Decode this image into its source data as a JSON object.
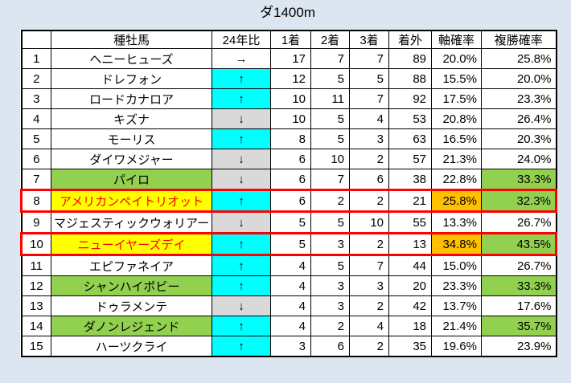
{
  "title": "ダ1400m",
  "colors": {
    "page_bg": "#dce6f1",
    "trend_up_bg": "#00ffff",
    "trend_down_bg": "#d9d9d9",
    "highlight_green": "#92d050",
    "highlight_yellow": "#ffff00",
    "highlight_orange": "#ffc000",
    "attention_red": "#ff0000"
  },
  "table": {
    "headers": [
      "",
      "種牡馬",
      "24年比",
      "1着",
      "2着",
      "3着",
      "着外",
      "軸確率",
      "複勝確率"
    ],
    "rows": [
      {
        "rank": "1",
        "sire": "ヘニーヒューズ",
        "trend": "→",
        "trend_bg": "none",
        "first": "17",
        "second": "7",
        "third": "7",
        "unplaced": "89",
        "axis_prob": "20.0%",
        "place_prob": "25.8%",
        "sire_highlight": "none",
        "axis_highlight": false,
        "place_highlight": false,
        "red_box": false
      },
      {
        "rank": "2",
        "sire": "ドレフォン",
        "trend": "↑",
        "trend_bg": "cyan",
        "first": "12",
        "second": "5",
        "third": "5",
        "unplaced": "88",
        "axis_prob": "15.5%",
        "place_prob": "20.0%",
        "sire_highlight": "none",
        "axis_highlight": false,
        "place_highlight": false,
        "red_box": false
      },
      {
        "rank": "3",
        "sire": "ロードカナロア",
        "trend": "↑",
        "trend_bg": "cyan",
        "first": "10",
        "second": "11",
        "third": "7",
        "unplaced": "92",
        "axis_prob": "17.5%",
        "place_prob": "23.3%",
        "sire_highlight": "none",
        "axis_highlight": false,
        "place_highlight": false,
        "red_box": false
      },
      {
        "rank": "4",
        "sire": "キズナ",
        "trend": "↓",
        "trend_bg": "gray",
        "first": "10",
        "second": "5",
        "third": "4",
        "unplaced": "53",
        "axis_prob": "20.8%",
        "place_prob": "26.4%",
        "sire_highlight": "none",
        "axis_highlight": false,
        "place_highlight": false,
        "red_box": false
      },
      {
        "rank": "5",
        "sire": "モーリス",
        "trend": "↑",
        "trend_bg": "cyan",
        "first": "8",
        "second": "5",
        "third": "3",
        "unplaced": "63",
        "axis_prob": "16.5%",
        "place_prob": "20.3%",
        "sire_highlight": "none",
        "axis_highlight": false,
        "place_highlight": false,
        "red_box": false
      },
      {
        "rank": "6",
        "sire": "ダイワメジャー",
        "trend": "↓",
        "trend_bg": "gray",
        "first": "6",
        "second": "10",
        "third": "2",
        "unplaced": "57",
        "axis_prob": "21.3%",
        "place_prob": "24.0%",
        "sire_highlight": "none",
        "axis_highlight": false,
        "place_highlight": false,
        "red_box": false
      },
      {
        "rank": "7",
        "sire": "パイロ",
        "trend": "↓",
        "trend_bg": "gray",
        "first": "6",
        "second": "7",
        "third": "6",
        "unplaced": "38",
        "axis_prob": "22.8%",
        "place_prob": "33.3%",
        "sire_highlight": "green",
        "axis_highlight": false,
        "place_highlight": true,
        "red_box": false
      },
      {
        "rank": "8",
        "sire": "アメリカンペイトリオット",
        "trend": "↑",
        "trend_bg": "cyan",
        "first": "6",
        "second": "2",
        "third": "2",
        "unplaced": "21",
        "axis_prob": "25.8%",
        "place_prob": "32.3%",
        "sire_highlight": "yellow",
        "axis_highlight": true,
        "place_highlight": true,
        "red_box": true
      },
      {
        "rank": "9",
        "sire": "マジェスティックウォリアー",
        "trend": "↓",
        "trend_bg": "gray",
        "first": "5",
        "second": "5",
        "third": "10",
        "unplaced": "55",
        "axis_prob": "13.3%",
        "place_prob": "26.7%",
        "sire_highlight": "none",
        "axis_highlight": false,
        "place_highlight": false,
        "red_box": false
      },
      {
        "rank": "10",
        "sire": "ニューイヤーズデイ",
        "trend": "↑",
        "trend_bg": "cyan",
        "first": "5",
        "second": "3",
        "third": "2",
        "unplaced": "13",
        "axis_prob": "34.8%",
        "place_prob": "43.5%",
        "sire_highlight": "yellow",
        "axis_highlight": true,
        "place_highlight": true,
        "red_box": true
      },
      {
        "rank": "11",
        "sire": "エピファネイア",
        "trend": "↑",
        "trend_bg": "cyan",
        "first": "4",
        "second": "5",
        "third": "7",
        "unplaced": "44",
        "axis_prob": "15.0%",
        "place_prob": "26.7%",
        "sire_highlight": "none",
        "axis_highlight": false,
        "place_highlight": false,
        "red_box": false
      },
      {
        "rank": "12",
        "sire": "シャンハイボビー",
        "trend": "↑",
        "trend_bg": "cyan",
        "first": "4",
        "second": "3",
        "third": "3",
        "unplaced": "20",
        "axis_prob": "23.3%",
        "place_prob": "33.3%",
        "sire_highlight": "green",
        "axis_highlight": false,
        "place_highlight": true,
        "red_box": false
      },
      {
        "rank": "13",
        "sire": "ドゥラメンテ",
        "trend": "↓",
        "trend_bg": "gray",
        "first": "4",
        "second": "3",
        "third": "2",
        "unplaced": "42",
        "axis_prob": "13.7%",
        "place_prob": "17.6%",
        "sire_highlight": "none",
        "axis_highlight": false,
        "place_highlight": false,
        "red_box": false
      },
      {
        "rank": "14",
        "sire": "ダノンレジェンド",
        "trend": "↑",
        "trend_bg": "cyan",
        "first": "4",
        "second": "2",
        "third": "4",
        "unplaced": "18",
        "axis_prob": "21.4%",
        "place_prob": "35.7%",
        "sire_highlight": "green",
        "axis_highlight": false,
        "place_highlight": true,
        "red_box": false
      },
      {
        "rank": "15",
        "sire": "ハーツクライ",
        "trend": "↑",
        "trend_bg": "cyan",
        "first": "3",
        "second": "6",
        "third": "2",
        "unplaced": "35",
        "axis_prob": "19.6%",
        "place_prob": "23.9%",
        "sire_highlight": "none",
        "axis_highlight": false,
        "place_highlight": false,
        "red_box": false
      }
    ]
  }
}
